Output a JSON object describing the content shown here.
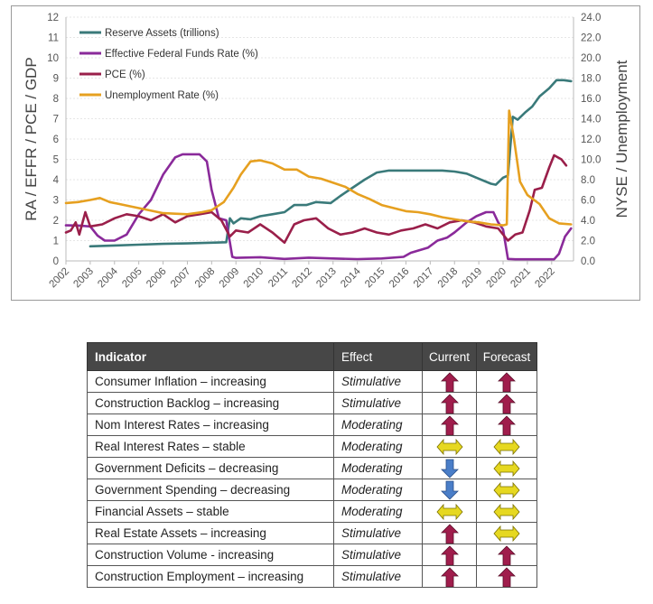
{
  "chart_data": {
    "type": "line",
    "x_ticks": [
      "2002",
      "2003",
      "2004",
      "2005",
      "2006",
      "2007",
      "2008",
      "2009",
      "2010",
      "2011",
      "2012",
      "2013",
      "2014",
      "2015",
      "2016",
      "2017",
      "2018",
      "2019",
      "2020",
      "2021",
      "2022"
    ],
    "xlim": [
      2002,
      2022.9
    ],
    "ylabel_left": "RA / EFFR / PCE / GDP",
    "ylabel_right": "NYSE / Unemployment",
    "ylim_left": [
      0,
      12
    ],
    "ylim_right": [
      0,
      24
    ],
    "left_ticks": [
      "0",
      "1",
      "2",
      "3",
      "4",
      "5",
      "6",
      "7",
      "8",
      "9",
      "10",
      "11",
      "12"
    ],
    "right_ticks": [
      "0.0",
      "2.0",
      "4.0",
      "6.0",
      "8.0",
      "10.0",
      "12.0",
      "14.0",
      "16.0",
      "18.0",
      "20.0",
      "22.0",
      "24.0"
    ],
    "grid": true,
    "legend_position": "top-left",
    "series": [
      {
        "name": "Reserve Assets (trillions)",
        "color": "#3a7a7a",
        "axis": "left",
        "points": [
          [
            2003,
            0.72
          ],
          [
            2004,
            0.76
          ],
          [
            2005,
            0.8
          ],
          [
            2006,
            0.84
          ],
          [
            2007,
            0.86
          ],
          [
            2008,
            0.9
          ],
          [
            2008.6,
            0.92
          ],
          [
            2008.75,
            2.1
          ],
          [
            2008.9,
            1.85
          ],
          [
            2009.2,
            2.1
          ],
          [
            2009.6,
            2.05
          ],
          [
            2010,
            2.2
          ],
          [
            2010.5,
            2.3
          ],
          [
            2011,
            2.4
          ],
          [
            2011.4,
            2.75
          ],
          [
            2011.9,
            2.75
          ],
          [
            2012.3,
            2.9
          ],
          [
            2012.9,
            2.85
          ],
          [
            2013.3,
            3.2
          ],
          [
            2013.8,
            3.6
          ],
          [
            2014.3,
            4.0
          ],
          [
            2014.8,
            4.35
          ],
          [
            2015.3,
            4.45
          ],
          [
            2016,
            4.45
          ],
          [
            2016.5,
            4.45
          ],
          [
            2017,
            4.45
          ],
          [
            2017.5,
            4.45
          ],
          [
            2018,
            4.4
          ],
          [
            2018.5,
            4.3
          ],
          [
            2019,
            4.05
          ],
          [
            2019.5,
            3.8
          ],
          [
            2019.7,
            3.75
          ],
          [
            2020,
            4.1
          ],
          [
            2020.2,
            4.2
          ],
          [
            2020.4,
            7.1
          ],
          [
            2020.6,
            6.95
          ],
          [
            2020.9,
            7.3
          ],
          [
            2021.2,
            7.6
          ],
          [
            2021.5,
            8.1
          ],
          [
            2021.9,
            8.5
          ],
          [
            2022.2,
            8.9
          ],
          [
            2022.5,
            8.9
          ],
          [
            2022.8,
            8.85
          ]
        ]
      },
      {
        "name": "Effective Federal Funds Rate (%)",
        "color": "#8a2a9a",
        "axis": "left",
        "points": [
          [
            2002,
            1.75
          ],
          [
            2002.5,
            1.74
          ],
          [
            2003,
            1.7
          ],
          [
            2003.3,
            1.25
          ],
          [
            2003.6,
            1.0
          ],
          [
            2004,
            1.0
          ],
          [
            2004.5,
            1.3
          ],
          [
            2005,
            2.3
          ],
          [
            2005.5,
            3.0
          ],
          [
            2006,
            4.25
          ],
          [
            2006.5,
            5.1
          ],
          [
            2006.8,
            5.25
          ],
          [
            2007.5,
            5.25
          ],
          [
            2007.8,
            4.9
          ],
          [
            2008,
            3.5
          ],
          [
            2008.3,
            2.1
          ],
          [
            2008.6,
            2.0
          ],
          [
            2008.85,
            0.2
          ],
          [
            2009,
            0.15
          ],
          [
            2010,
            0.18
          ],
          [
            2011,
            0.1
          ],
          [
            2012,
            0.16
          ],
          [
            2013,
            0.12
          ],
          [
            2014,
            0.09
          ],
          [
            2015,
            0.12
          ],
          [
            2015.9,
            0.2
          ],
          [
            2016.2,
            0.4
          ],
          [
            2016.9,
            0.65
          ],
          [
            2017.3,
            1.0
          ],
          [
            2017.7,
            1.15
          ],
          [
            2018,
            1.4
          ],
          [
            2018.5,
            1.9
          ],
          [
            2018.9,
            2.2
          ],
          [
            2019.3,
            2.4
          ],
          [
            2019.6,
            2.4
          ],
          [
            2019.8,
            1.9
          ],
          [
            2020,
            1.55
          ],
          [
            2020.2,
            0.1
          ],
          [
            2020.5,
            0.08
          ],
          [
            2021,
            0.08
          ],
          [
            2021.6,
            0.08
          ],
          [
            2022.1,
            0.08
          ],
          [
            2022.3,
            0.35
          ],
          [
            2022.55,
            1.2
          ],
          [
            2022.8,
            1.6
          ]
        ]
      },
      {
        "name": "PCE (%)",
        "color": "#9a1f4a",
        "axis": "left",
        "points": [
          [
            2002,
            1.4
          ],
          [
            2002.2,
            1.5
          ],
          [
            2002.4,
            1.9
          ],
          [
            2002.55,
            1.3
          ],
          [
            2002.8,
            2.4
          ],
          [
            2003,
            1.7
          ],
          [
            2003.5,
            1.8
          ],
          [
            2004,
            2.1
          ],
          [
            2004.5,
            2.3
          ],
          [
            2005,
            2.2
          ],
          [
            2005.5,
            2.0
          ],
          [
            2006,
            2.3
          ],
          [
            2006.5,
            1.9
          ],
          [
            2007,
            2.2
          ],
          [
            2007.5,
            2.3
          ],
          [
            2008,
            2.4
          ],
          [
            2008.4,
            2.0
          ],
          [
            2008.75,
            1.2
          ],
          [
            2009,
            1.5
          ],
          [
            2009.5,
            1.4
          ],
          [
            2010,
            1.8
          ],
          [
            2010.5,
            1.4
          ],
          [
            2011,
            0.9
          ],
          [
            2011.4,
            1.8
          ],
          [
            2011.8,
            2.0
          ],
          [
            2012.3,
            2.1
          ],
          [
            2012.8,
            1.6
          ],
          [
            2013.3,
            1.3
          ],
          [
            2013.8,
            1.4
          ],
          [
            2014.3,
            1.6
          ],
          [
            2014.8,
            1.4
          ],
          [
            2015.3,
            1.3
          ],
          [
            2015.8,
            1.5
          ],
          [
            2016.3,
            1.6
          ],
          [
            2016.8,
            1.8
          ],
          [
            2017.3,
            1.6
          ],
          [
            2017.8,
            1.9
          ],
          [
            2018.3,
            2.0
          ],
          [
            2018.8,
            1.9
          ],
          [
            2019.3,
            1.7
          ],
          [
            2019.8,
            1.6
          ],
          [
            2020.2,
            1.0
          ],
          [
            2020.5,
            1.3
          ],
          [
            2020.8,
            1.4
          ],
          [
            2021.1,
            2.5
          ],
          [
            2021.3,
            3.5
          ],
          [
            2021.6,
            3.6
          ],
          [
            2021.9,
            4.6
          ],
          [
            2022.1,
            5.2
          ],
          [
            2022.4,
            5.0
          ],
          [
            2022.6,
            4.7
          ]
        ]
      },
      {
        "name": "Unemployment Rate (%)",
        "color": "#e6a020",
        "axis": "right",
        "points": [
          [
            2002,
            5.7
          ],
          [
            2002.5,
            5.8
          ],
          [
            2003,
            6.0
          ],
          [
            2003.4,
            6.2
          ],
          [
            2003.8,
            5.8
          ],
          [
            2004.2,
            5.6
          ],
          [
            2005,
            5.2
          ],
          [
            2006,
            4.7
          ],
          [
            2007,
            4.6
          ],
          [
            2007.6,
            4.8
          ],
          [
            2008,
            5.0
          ],
          [
            2008.5,
            5.8
          ],
          [
            2008.9,
            7.2
          ],
          [
            2009.2,
            8.5
          ],
          [
            2009.6,
            9.8
          ],
          [
            2010,
            9.9
          ],
          [
            2010.5,
            9.6
          ],
          [
            2011,
            9.0
          ],
          [
            2011.5,
            9.0
          ],
          [
            2012,
            8.3
          ],
          [
            2012.5,
            8.1
          ],
          [
            2013,
            7.7
          ],
          [
            2013.5,
            7.3
          ],
          [
            2014,
            6.6
          ],
          [
            2014.5,
            6.1
          ],
          [
            2015,
            5.5
          ],
          [
            2015.5,
            5.2
          ],
          [
            2016,
            4.9
          ],
          [
            2016.5,
            4.8
          ],
          [
            2017,
            4.6
          ],
          [
            2017.5,
            4.3
          ],
          [
            2018,
            4.1
          ],
          [
            2018.5,
            3.9
          ],
          [
            2019,
            3.8
          ],
          [
            2019.5,
            3.6
          ],
          [
            2020,
            3.5
          ],
          [
            2020.15,
            3.6
          ],
          [
            2020.25,
            14.8
          ],
          [
            2020.45,
            12.0
          ],
          [
            2020.7,
            7.8
          ],
          [
            2021,
            6.5
          ],
          [
            2021.5,
            5.6
          ],
          [
            2021.9,
            4.2
          ],
          [
            2022.3,
            3.7
          ],
          [
            2022.8,
            3.6
          ]
        ]
      }
    ]
  },
  "table": {
    "headers": [
      "Indicator",
      "Effect",
      "Current",
      "Forecast"
    ],
    "rows": [
      {
        "indicator": "Consumer Inflation – increasing",
        "effect": "Stimulative",
        "current": "up",
        "forecast": "up"
      },
      {
        "indicator": "Construction Backlog – increasing",
        "effect": "Stimulative",
        "current": "up",
        "forecast": "up"
      },
      {
        "indicator": "Nom Interest Rates – increasing",
        "effect": "Moderating",
        "current": "up",
        "forecast": "up"
      },
      {
        "indicator": "Real Interest Rates – stable",
        "effect": "Moderating",
        "current": "stable",
        "forecast": "stable"
      },
      {
        "indicator": "Government Deficits – decreasing",
        "effect": "Moderating",
        "current": "down",
        "forecast": "stable"
      },
      {
        "indicator": "Government Spending – decreasing",
        "effect": "Moderating",
        "current": "down",
        "forecast": "stable"
      },
      {
        "indicator": "Financial Assets – stable",
        "effect": "Moderating",
        "current": "stable",
        "forecast": "stable"
      },
      {
        "indicator": "Real Estate Assets – increasing",
        "effect": "Stimulative",
        "current": "up",
        "forecast": "stable"
      },
      {
        "indicator": "Construction Volume - increasing",
        "effect": "Stimulative",
        "current": "up",
        "forecast": "up"
      },
      {
        "indicator": "Construction Employment – increasing",
        "effect": "Stimulative",
        "current": "up",
        "forecast": "up"
      }
    ]
  },
  "colors": {
    "arrow_up": "#a01d4c",
    "arrow_down": "#4a7ec8",
    "arrow_stable": "#e6d820",
    "header_bg": "#474747"
  }
}
